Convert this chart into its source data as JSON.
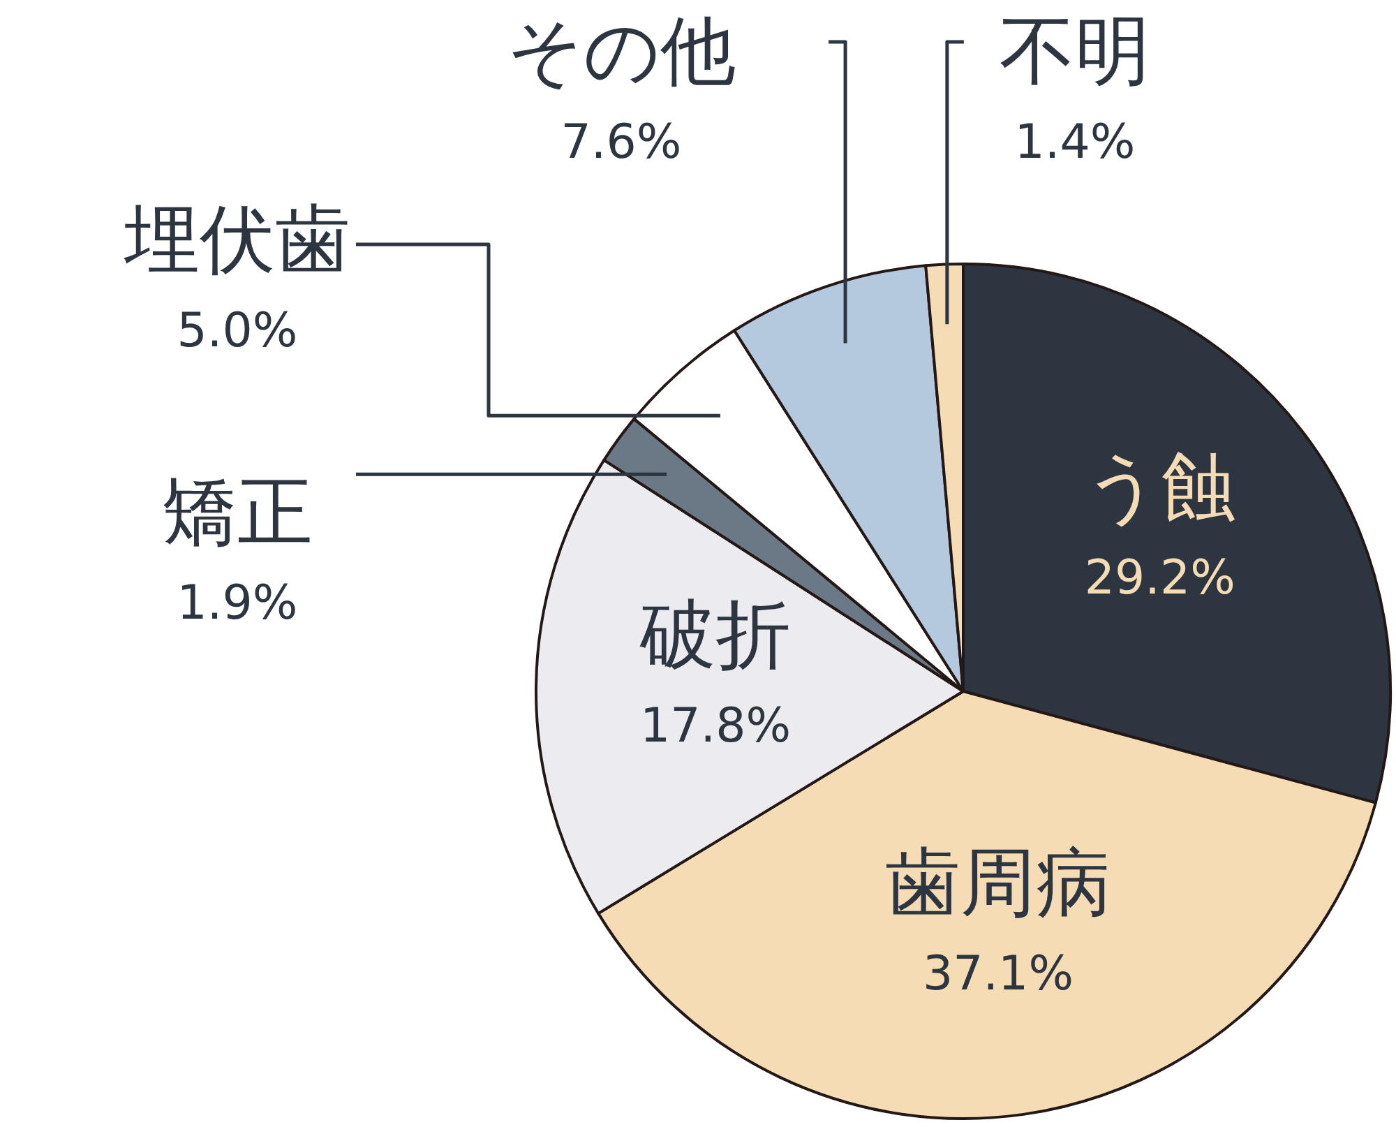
{
  "chart_data": {
    "type": "pie",
    "categories": [
      "う蝕",
      "歯周病",
      "破折",
      "矯正",
      "埋伏歯",
      "その他",
      "不明"
    ],
    "values": [
      29.2,
      37.1,
      17.8,
      1.9,
      5.0,
      7.6,
      1.4
    ],
    "value_labels": [
      "29.2%",
      "37.1%",
      "17.8%",
      "1.9%",
      "5.0%",
      "7.6%",
      "1.4%"
    ],
    "colors": [
      "#2d3540",
      "#f5dcb5",
      "#ececf0",
      "#6b7886",
      "#ffffff",
      "#b4c8de",
      "#f5dcb5"
    ]
  }
}
